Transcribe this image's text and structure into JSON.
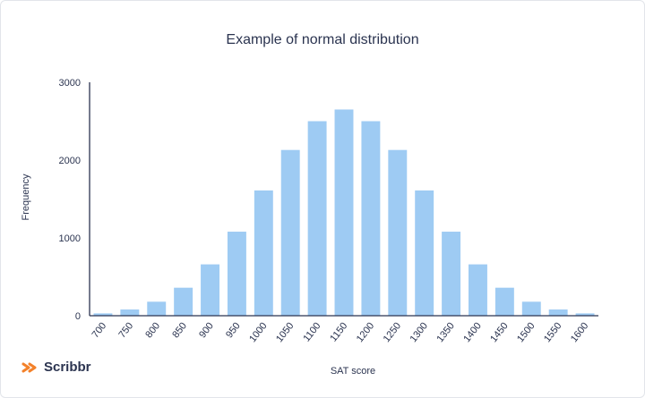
{
  "chart_data": {
    "type": "bar",
    "title": "Example of normal distribution",
    "xlabel": "SAT score",
    "ylabel": "Frequency",
    "categories": [
      "700",
      "750",
      "800",
      "850",
      "900",
      "950",
      "1000",
      "1050",
      "1100",
      "1150",
      "1200",
      "1250",
      "1300",
      "1350",
      "1400",
      "1450",
      "1500",
      "1550",
      "1600"
    ],
    "values": [
      30,
      80,
      180,
      360,
      660,
      1080,
      1610,
      2130,
      2500,
      2650,
      2500,
      2130,
      1610,
      1080,
      660,
      360,
      180,
      80,
      30
    ],
    "ylim": [
      0,
      3000
    ],
    "yticks": [
      "0",
      "1000",
      "2000",
      "3000"
    ],
    "bar_color": "#9ecbf3",
    "axis_color": "#2b3450",
    "grid": false,
    "legend": "none"
  },
  "brand": {
    "name": "Scribbr",
    "accent": "#f3812a"
  }
}
